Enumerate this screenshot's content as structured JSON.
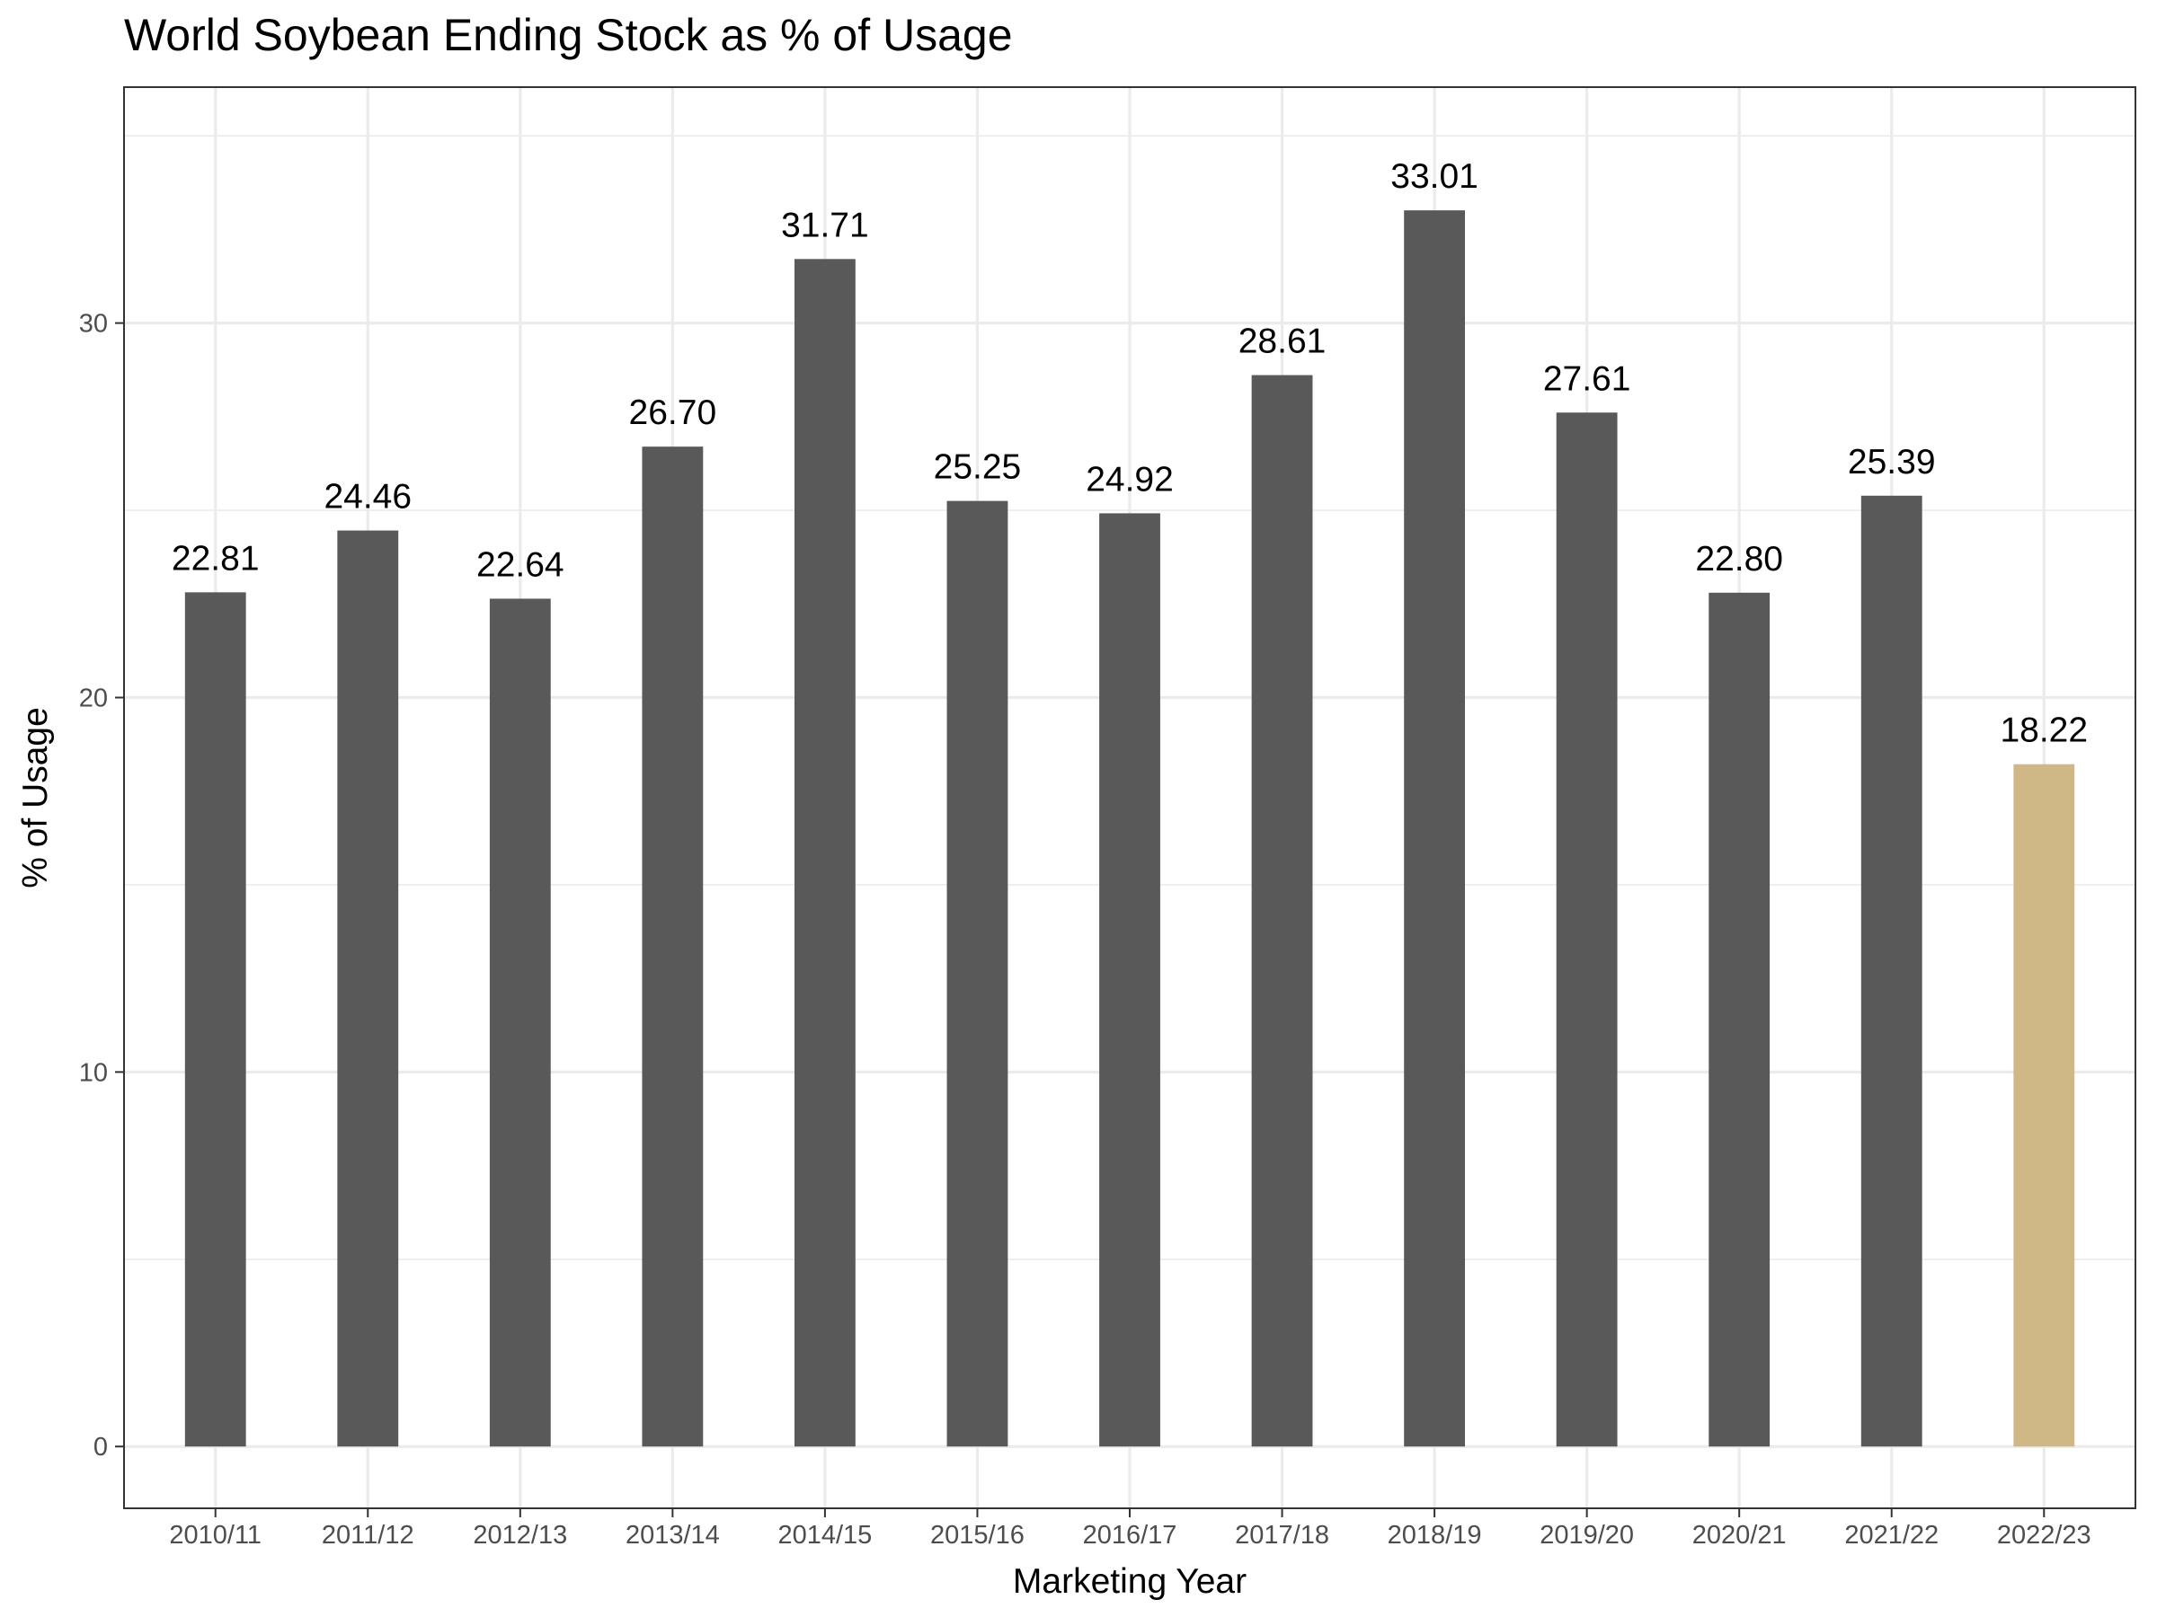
{
  "chart_data": {
    "type": "bar",
    "title": "World Soybean Ending Stock as % of Usage",
    "xlabel": "Marketing Year",
    "ylabel": "% of Usage",
    "categories": [
      "2010/11",
      "2011/12",
      "2012/13",
      "2013/14",
      "2014/15",
      "2015/16",
      "2016/17",
      "2017/18",
      "2018/19",
      "2019/20",
      "2020/21",
      "2021/22",
      "2022/23"
    ],
    "values": [
      22.81,
      24.46,
      22.64,
      26.7,
      31.71,
      25.25,
      24.92,
      28.61,
      33.01,
      27.61,
      22.8,
      25.39,
      18.22
    ],
    "value_labels": [
      "22.81",
      "24.46",
      "22.64",
      "26.70",
      "31.71",
      "25.25",
      "24.92",
      "28.61",
      "33.01",
      "27.61",
      "22.80",
      "25.39",
      "18.22"
    ],
    "ylim": [
      -1.65,
      36.3
    ],
    "yticks": [
      0,
      10,
      20,
      30
    ],
    "grid": true,
    "colors": {
      "bar_default": "#595959",
      "bar_highlight": "#cfb886",
      "highlight_category": "2022/23",
      "grid": "#ebebeb",
      "panel_border": "#333333"
    }
  }
}
